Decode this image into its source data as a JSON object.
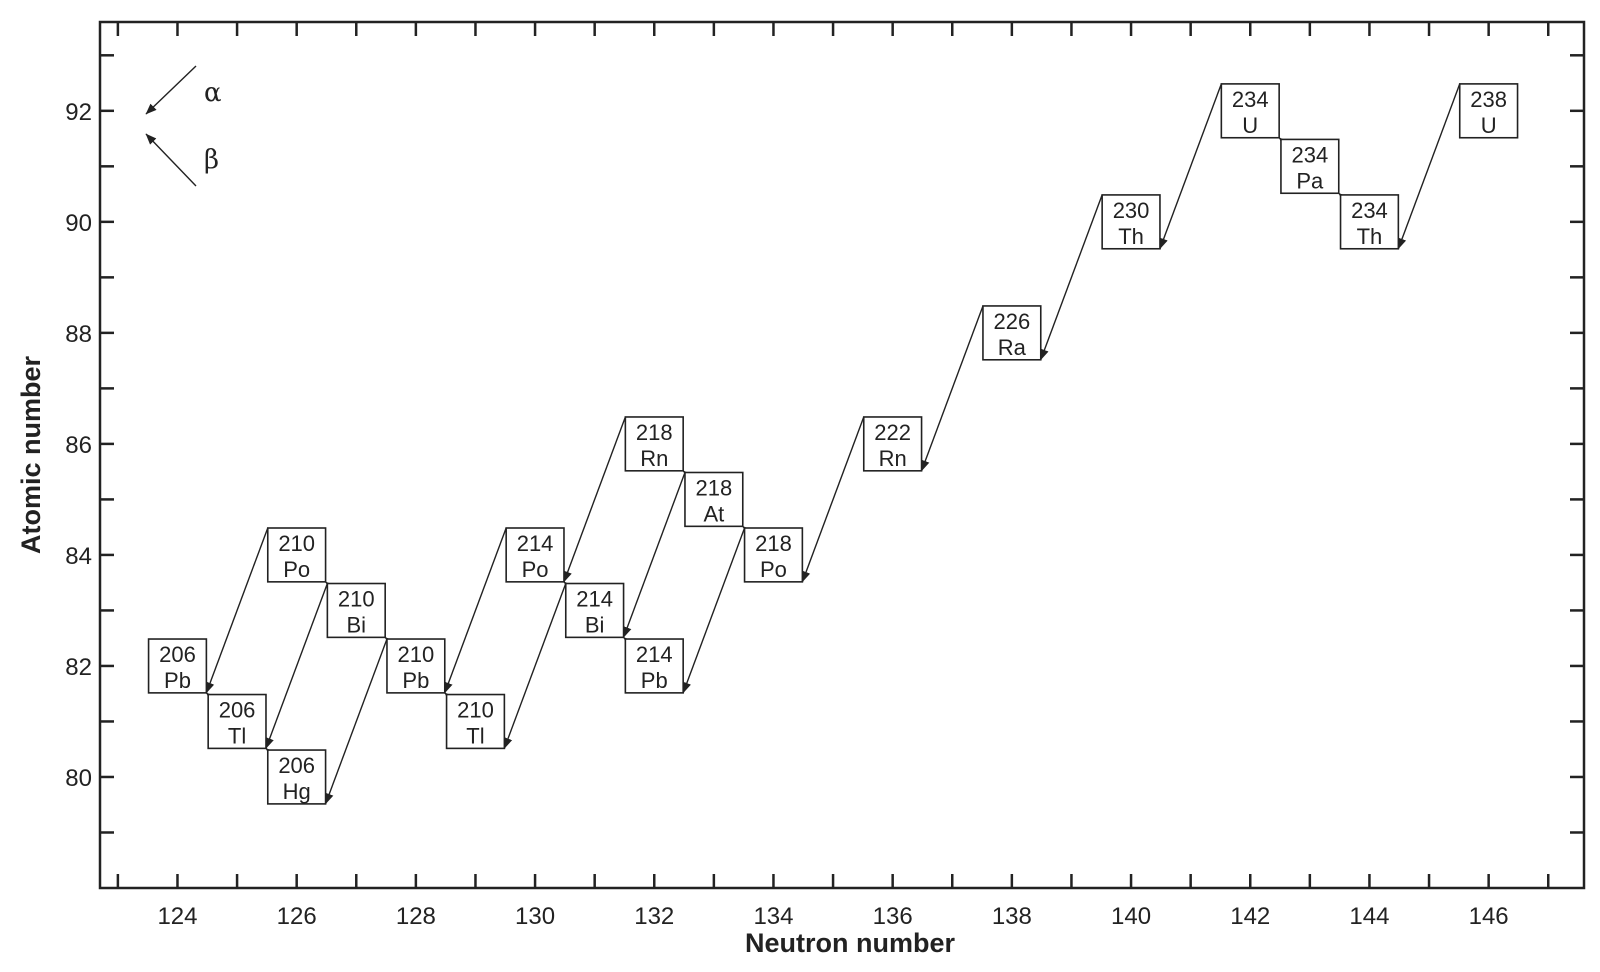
{
  "chart_data": {
    "type": "diagram",
    "xlabel": "Neutron number",
    "ylabel": "Atomic number",
    "xlim": [
      122.7,
      147.6
    ],
    "ylim": [
      78.0,
      93.6
    ],
    "xticks": [
      124,
      126,
      128,
      130,
      132,
      134,
      136,
      138,
      140,
      142,
      144,
      146
    ],
    "yticks": [
      80,
      82,
      84,
      86,
      88,
      90,
      92
    ],
    "legend": [
      {
        "symbol": "α",
        "direction": "down-left"
      },
      {
        "symbol": "β",
        "direction": "up-left"
      }
    ],
    "nuclides": [
      {
        "id": "U238",
        "mass": "238",
        "element": "U",
        "n": 146,
        "z": 92
      },
      {
        "id": "Th234",
        "mass": "234",
        "element": "Th",
        "n": 144,
        "z": 90
      },
      {
        "id": "Pa234",
        "mass": "234",
        "element": "Pa",
        "n": 143,
        "z": 91
      },
      {
        "id": "U234",
        "mass": "234",
        "element": "U",
        "n": 142,
        "z": 92
      },
      {
        "id": "Th230",
        "mass": "230",
        "element": "Th",
        "n": 140,
        "z": 90
      },
      {
        "id": "Ra226",
        "mass": "226",
        "element": "Ra",
        "n": 138,
        "z": 88
      },
      {
        "id": "Rn222",
        "mass": "222",
        "element": "Rn",
        "n": 136,
        "z": 86
      },
      {
        "id": "Po218",
        "mass": "218",
        "element": "Po",
        "n": 134,
        "z": 84
      },
      {
        "id": "At218",
        "mass": "218",
        "element": "At",
        "n": 133,
        "z": 85
      },
      {
        "id": "Rn218",
        "mass": "218",
        "element": "Rn",
        "n": 132,
        "z": 86
      },
      {
        "id": "Pb214",
        "mass": "214",
        "element": "Pb",
        "n": 132,
        "z": 82
      },
      {
        "id": "Bi214",
        "mass": "214",
        "element": "Bi",
        "n": 131,
        "z": 83
      },
      {
        "id": "Po214",
        "mass": "214",
        "element": "Po",
        "n": 130,
        "z": 84
      },
      {
        "id": "Tl210",
        "mass": "210",
        "element": "Tl",
        "n": 129,
        "z": 81
      },
      {
        "id": "Pb210",
        "mass": "210",
        "element": "Pb",
        "n": 128,
        "z": 82
      },
      {
        "id": "Bi210",
        "mass": "210",
        "element": "Bi",
        "n": 127,
        "z": 83
      },
      {
        "id": "Po210",
        "mass": "210",
        "element": "Po",
        "n": 126,
        "z": 84
      },
      {
        "id": "Hg206",
        "mass": "206",
        "element": "Hg",
        "n": 126,
        "z": 80
      },
      {
        "id": "Tl206",
        "mass": "206",
        "element": "Tl",
        "n": 125,
        "z": 81
      },
      {
        "id": "Pb206",
        "mass": "206",
        "element": "Pb",
        "n": 124,
        "z": 82
      }
    ],
    "decays": [
      {
        "from": "U238",
        "to": "Th234",
        "mode": "alpha"
      },
      {
        "from": "Th234",
        "to": "Pa234",
        "mode": "beta"
      },
      {
        "from": "Pa234",
        "to": "U234",
        "mode": "beta"
      },
      {
        "from": "U234",
        "to": "Th230",
        "mode": "alpha"
      },
      {
        "from": "Th230",
        "to": "Ra226",
        "mode": "alpha"
      },
      {
        "from": "Ra226",
        "to": "Rn222",
        "mode": "alpha"
      },
      {
        "from": "Rn222",
        "to": "Po218",
        "mode": "alpha"
      },
      {
        "from": "Po218",
        "to": "Pb214",
        "mode": "alpha"
      },
      {
        "from": "Po218",
        "to": "At218",
        "mode": "beta"
      },
      {
        "from": "At218",
        "to": "Rn218",
        "mode": "beta"
      },
      {
        "from": "At218",
        "to": "Bi214",
        "mode": "alpha"
      },
      {
        "from": "Rn218",
        "to": "Po214",
        "mode": "alpha"
      },
      {
        "from": "Pb214",
        "to": "Bi214",
        "mode": "beta"
      },
      {
        "from": "Bi214",
        "to": "Po214",
        "mode": "beta"
      },
      {
        "from": "Bi214",
        "to": "Tl210",
        "mode": "alpha"
      },
      {
        "from": "Po214",
        "to": "Pb210",
        "mode": "alpha"
      },
      {
        "from": "Tl210",
        "to": "Pb210",
        "mode": "beta"
      },
      {
        "from": "Pb210",
        "to": "Bi210",
        "mode": "beta"
      },
      {
        "from": "Pb210",
        "to": "Hg206",
        "mode": "alpha"
      },
      {
        "from": "Bi210",
        "to": "Po210",
        "mode": "beta"
      },
      {
        "from": "Bi210",
        "to": "Tl206",
        "mode": "alpha"
      },
      {
        "from": "Po210",
        "to": "Pb206",
        "mode": "alpha"
      },
      {
        "from": "Hg206",
        "to": "Tl206",
        "mode": "beta"
      },
      {
        "from": "Tl206",
        "to": "Pb206",
        "mode": "beta"
      }
    ]
  }
}
